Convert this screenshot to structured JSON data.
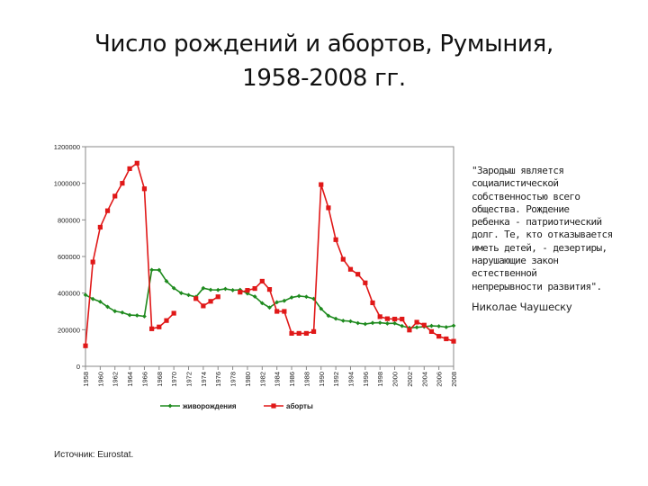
{
  "title": {
    "line1": "Число рождений и абортов, Румыния,",
    "line2": "1958-2008 гг."
  },
  "quote": {
    "text": "\"Зародыш является\nсоциалистической\nсобственностью всего\nобщества. Рождение\nребенка - патриотический\nдолг. Те, кто отказывается\nиметь детей, - дезертиры,\nнарушающие закон\nестественной\nнепрерывности развития\".",
    "author": "Николае Чаушеску"
  },
  "source": "Источник: Eurostat.",
  "colors": {
    "births": "#1e8a1e",
    "abortions": "#e01818",
    "axis": "#888888",
    "text": "#222222"
  },
  "chart_data": {
    "type": "line",
    "title": "Число рождений и абортов, Румыния, 1958-2008 гг.",
    "xlabel": "",
    "ylabel": "",
    "ylim": [
      0,
      1200000
    ],
    "xlim": [
      1958,
      2008
    ],
    "grid": false,
    "legend_position": "bottom",
    "y_ticks": [
      "0",
      "200000",
      "400000",
      "600000",
      "800000",
      "1000000",
      "1200000"
    ],
    "x_ticks": [
      "1958",
      "1960",
      "1962",
      "1964",
      "1966",
      "1968",
      "1970",
      "1972",
      "1974",
      "1976",
      "1978",
      "1980",
      "1982",
      "1984",
      "1986",
      "1988",
      "1990",
      "1992",
      "1994",
      "1996",
      "1998",
      "2000",
      "2002",
      "2004",
      "2006",
      "2008"
    ],
    "x": [
      1958,
      1959,
      1960,
      1961,
      1962,
      1963,
      1964,
      1965,
      1966,
      1967,
      1968,
      1969,
      1970,
      1971,
      1972,
      1973,
      1974,
      1975,
      1976,
      1977,
      1978,
      1979,
      1980,
      1981,
      1982,
      1983,
      1984,
      1985,
      1986,
      1987,
      1988,
      1989,
      1990,
      1991,
      1992,
      1993,
      1994,
      1995,
      1996,
      1997,
      1998,
      1999,
      2000,
      2001,
      2002,
      2003,
      2004,
      2005,
      2006,
      2007,
      2008
    ],
    "series": [
      {
        "name": "живорождения",
        "color": "#1e8a1e",
        "marker": "diamond",
        "values": [
          390000,
          368000,
          353000,
          325000,
          301000,
          294000,
          280000,
          278000,
          273000,
          527000,
          526000,
          465000,
          427000,
          400000,
          389000,
          379000,
          427000,
          418000,
          417000,
          423000,
          416000,
          418000,
          398000,
          381000,
          345000,
          321000,
          350000,
          358000,
          376000,
          384000,
          380000,
          369000,
          314000,
          276000,
          260000,
          249000,
          246000,
          236000,
          231000,
          237000,
          238000,
          234000,
          235000,
          220000,
          210000,
          213000,
          216000,
          221000,
          219000,
          214000,
          222000
        ]
      },
      {
        "name": "аборты",
        "color": "#e01818",
        "marker": "square",
        "values": [
          112000,
          570000,
          760000,
          850000,
          930000,
          1000000,
          1080000,
          1110000,
          970000,
          205000,
          215000,
          250000,
          290000,
          null,
          null,
          370000,
          330000,
          355000,
          380000,
          null,
          null,
          405000,
          415000,
          425000,
          465000,
          420000,
          300000,
          300000,
          180000,
          180000,
          180000,
          190000,
          993000,
          866000,
          692000,
          585000,
          530000,
          503000,
          456000,
          347000,
          271000,
          260000,
          258000,
          258000,
          198000,
          241000,
          225000,
          190000,
          164000,
          150000,
          137000
        ]
      }
    ]
  }
}
